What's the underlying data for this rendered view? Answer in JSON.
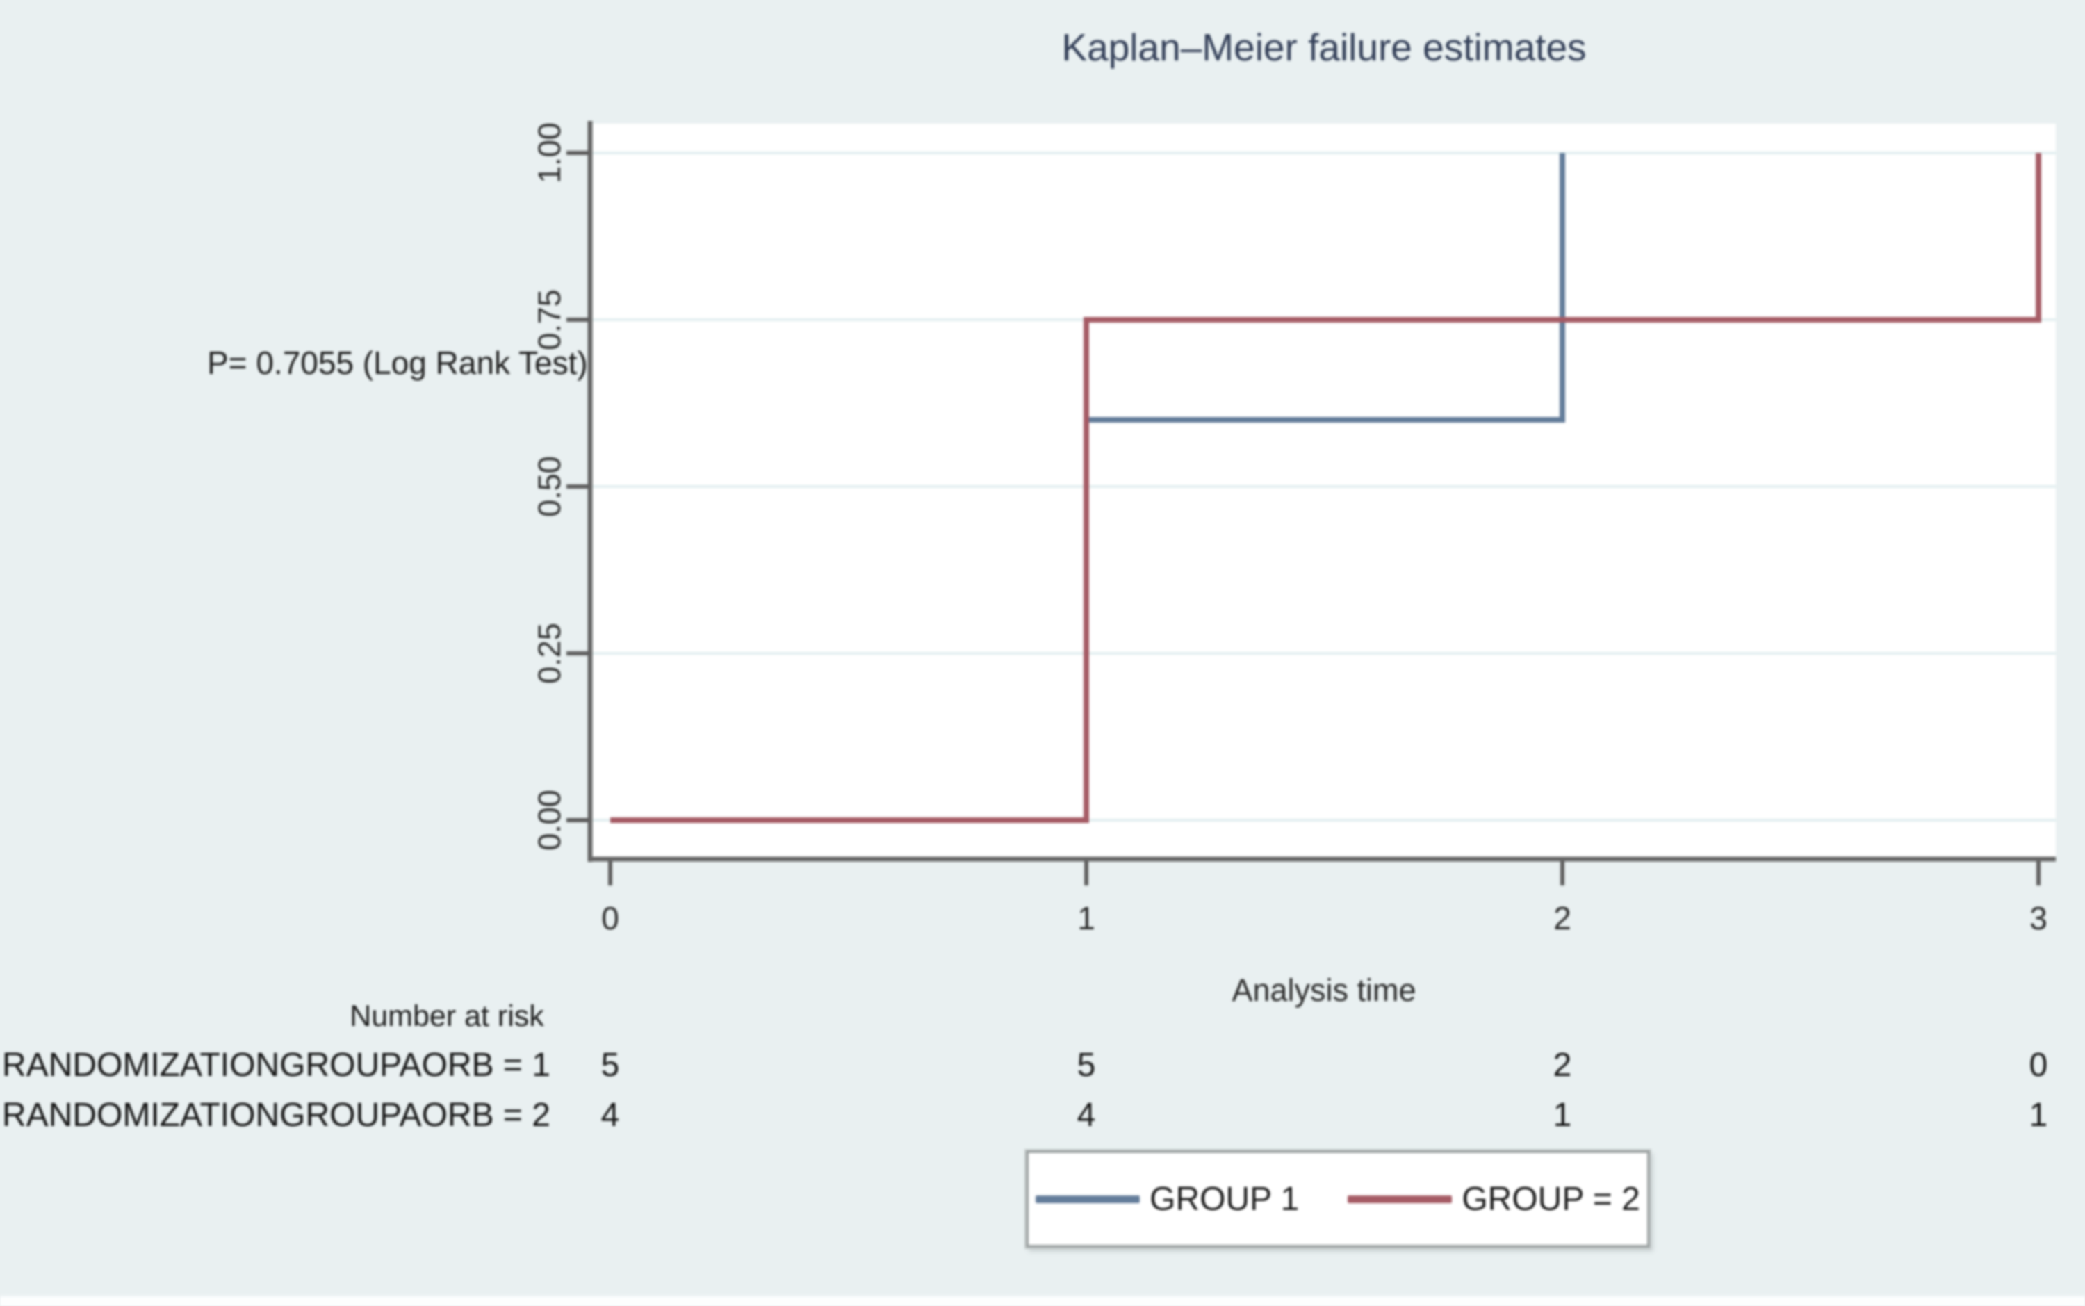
{
  "window": {
    "background_color": "#e9f0f1",
    "plot_background_color": "#ffffff",
    "title_color": "#333f58",
    "axis_color": "#676767",
    "gridline_color": "#e2eff0"
  },
  "chart_data": {
    "type": "line",
    "subtype": "kaplan-meier-failure-step",
    "title": "Kaplan–Meier failure estimates",
    "annotation": "P= 0.7055 (Log Rank Test)",
    "xlabel": "Analysis time",
    "ylabel": "",
    "xlim": [
      0,
      3
    ],
    "ylim": [
      0,
      1
    ],
    "xticks": [
      0,
      1,
      2,
      3
    ],
    "xtick_labels": [
      "0",
      "1",
      "2",
      "3"
    ],
    "yticks": [
      0,
      0.25,
      0.5,
      0.75,
      1
    ],
    "ytick_labels": [
      "0.00",
      "0.25",
      "0.50",
      "0.75",
      "1.00"
    ],
    "grid": "horizontal-only",
    "legend_position": "bottom-center",
    "series": [
      {
        "name": "GROUP 1",
        "color": "#637c9a",
        "points": [
          [
            0,
            0
          ],
          [
            1,
            0
          ],
          [
            1,
            0.6
          ],
          [
            2,
            0.6
          ],
          [
            2,
            1.0
          ]
        ]
      },
      {
        "name": "GROUP = 2",
        "color": "#a55a64",
        "points": [
          [
            0,
            0
          ],
          [
            1,
            0
          ],
          [
            1,
            0.75
          ],
          [
            3,
            0.75
          ],
          [
            3,
            1.0
          ]
        ]
      }
    ],
    "risk_table": {
      "header": "Number at risk",
      "time_points": [
        0,
        1,
        2,
        3
      ],
      "rows": [
        {
          "label": "RANDOMIZATIONGROUPAORB = 1",
          "values": [
            "5",
            "5",
            "2",
            "0"
          ]
        },
        {
          "label": "RANDOMIZATIONGROUPAORB = 2",
          "values": [
            "4",
            "4",
            "1",
            "1"
          ]
        }
      ]
    }
  }
}
